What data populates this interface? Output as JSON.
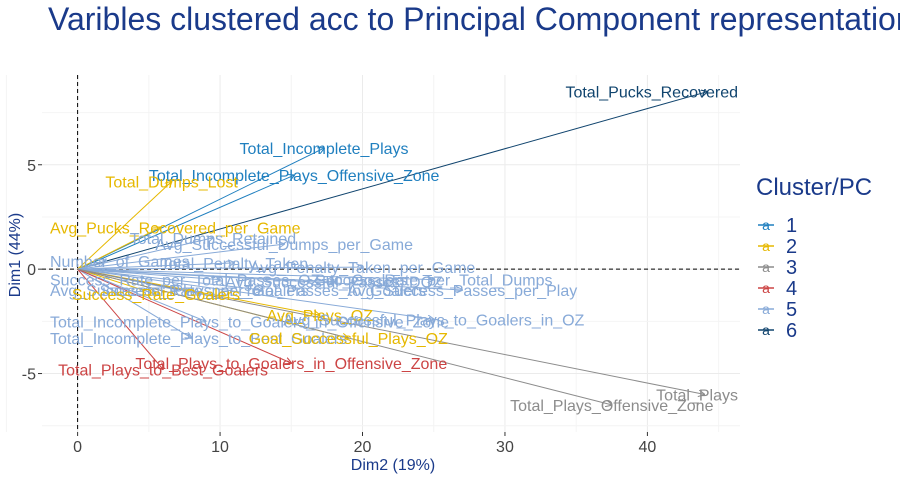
{
  "chart_data": {
    "type": "scatter",
    "title": "Varibles clustered acc to Principal Component representation",
    "xlabel": "Dim2 (19%)",
    "ylabel": "Dim1 (44%)",
    "xlim": [
      -2.5,
      46.5
    ],
    "ylim": [
      -7.8,
      9.3
    ],
    "x_ticks": [
      0,
      10,
      20,
      30,
      40
    ],
    "y_ticks": [
      -5,
      0,
      5
    ],
    "reference_lines": {
      "x": 0,
      "y": 0,
      "style": "dashed"
    },
    "grid": true,
    "legend": {
      "title": "Cluster/PC",
      "position": "right",
      "entries": [
        {
          "label": "1",
          "color": "#1f7fbf"
        },
        {
          "label": "2",
          "color": "#e6b800"
        },
        {
          "label": "3",
          "color": "#8c8c8c"
        },
        {
          "label": "4",
          "color": "#cc4444"
        },
        {
          "label": "5",
          "color": "#88aad8"
        },
        {
          "label": "6",
          "color": "#10446e"
        }
      ]
    },
    "variables": [
      {
        "name": "Total_Pucks_Recovered",
        "x": 44.2,
        "y": 8.5,
        "cluster": "6"
      },
      {
        "name": "Total_Incomplete_Plays",
        "x": 17.3,
        "y": 5.8,
        "cluster": "1"
      },
      {
        "name": "Total_Incomplete_Plays_Offensive_Zone",
        "x": 15.2,
        "y": 4.5,
        "cluster": "1"
      },
      {
        "name": "Total_Dumps_Lost",
        "x": 6.6,
        "y": 4.2,
        "cluster": "2"
      },
      {
        "name": "Avg_Pucks_Recovered_per_Game",
        "x": 5.8,
        "y": 2.0,
        "cluster": "2"
      },
      {
        "name": "Total_Dumps_Retained",
        "x": 9.5,
        "y": 1.5,
        "cluster": "5"
      },
      {
        "name": "Avg_Successful_Dumps_per_Game",
        "x": 14.5,
        "y": 1.2,
        "cluster": "5"
      },
      {
        "name": "Number_of_Games",
        "x": 2.0,
        "y": 0.4,
        "cluster": "5"
      },
      {
        "name": "Total_Penalty_Taken",
        "x": 11.0,
        "y": 0.3,
        "cluster": "5"
      },
      {
        "name": "Avg_Penalty_Taken_per_Game",
        "x": 20.0,
        "y": 0.1,
        "cluster": "5"
      },
      {
        "name": "Success_Rate_per_Total_Passes_OZ_to_Goalers",
        "x": 10.0,
        "y": -0.5,
        "cluster": "5"
      },
      {
        "name": "Avg_Successful_Plays_per_Goalers",
        "x": 7.0,
        "y": -1.0,
        "cluster": "5"
      },
      {
        "name": "Success_Rate_per_Total_Passes_to_Goalers",
        "x": 13.0,
        "y": -1.0,
        "cluster": "5"
      },
      {
        "name": "Avg_Successful_Passes_DOZ",
        "x": 18.0,
        "y": -0.6,
        "cluster": "5"
      },
      {
        "name": "Success_Rate_per_Total_Dumps",
        "x": 25.0,
        "y": -0.5,
        "cluster": "5"
      },
      {
        "name": "Avg_Success_Passes_per_Play",
        "x": 27.0,
        "y": -1.0,
        "cluster": "5"
      },
      {
        "name": "Success_Rate_Goalers",
        "x": 5.5,
        "y": -1.2,
        "cluster": "2"
      },
      {
        "name": "Total_Incomplete_Plays_to_Goalers_in_Offensive_Zone",
        "x": 9.0,
        "y": -2.5,
        "cluster": "5"
      },
      {
        "name": "Avg_Plays_OZ",
        "x": 17.0,
        "y": -2.2,
        "cluster": "2"
      },
      {
        "name": "Avg_Successful_Plays_to_Goalers_in_OZ",
        "x": 25.0,
        "y": -2.4,
        "cluster": "5"
      },
      {
        "name": "Total_Incomplete_Plays_to_Best_Goalers",
        "x": 8.0,
        "y": -3.3,
        "cluster": "5"
      },
      {
        "name": "Goal_Successful_Plays_OZ",
        "x": 19.0,
        "y": -3.3,
        "cluster": "2"
      },
      {
        "name": "Total_Plays_to_Goalers_in_Offensive_Zone",
        "x": 15.0,
        "y": -4.5,
        "cluster": "4"
      },
      {
        "name": "Total_Plays_to_Best_Goalers",
        "x": 6.0,
        "y": -4.8,
        "cluster": "4"
      },
      {
        "name": "Total_Plays_Offensive_Zone",
        "x": 37.5,
        "y": -6.5,
        "cluster": "3"
      },
      {
        "name": "Total_Plays",
        "x": 44.0,
        "y": -6.0,
        "cluster": "3"
      }
    ]
  }
}
